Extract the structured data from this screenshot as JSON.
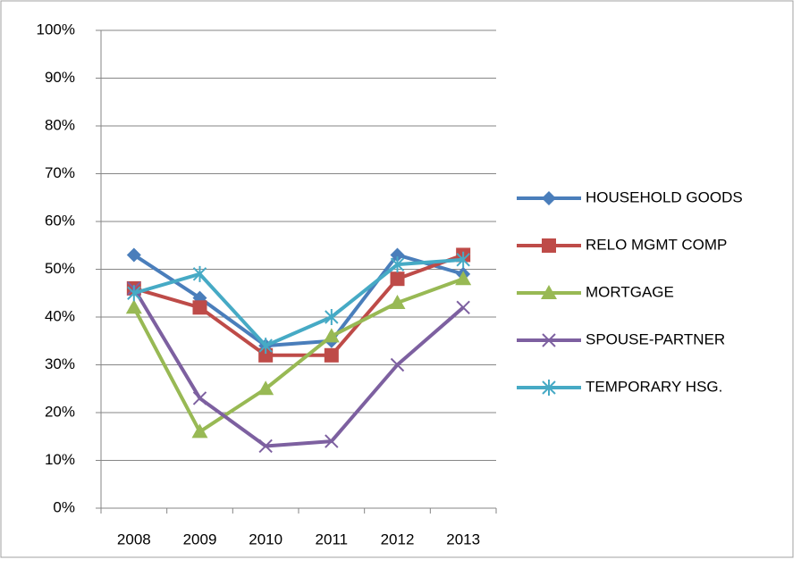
{
  "chart_data": {
    "type": "line",
    "categories": [
      "2008",
      "2009",
      "2010",
      "2011",
      "2012",
      "2013"
    ],
    "series": [
      {
        "name": "HOUSEHOLD GOODS",
        "color": "#4a7ebb",
        "marker": "diamond",
        "values": [
          53,
          44,
          34,
          35,
          53,
          49
        ]
      },
      {
        "name": "RELO MGMT COMP",
        "color": "#be4b48",
        "marker": "square",
        "values": [
          46,
          42,
          32,
          32,
          48,
          53
        ]
      },
      {
        "name": "MORTGAGE",
        "color": "#98b954",
        "marker": "triangle",
        "values": [
          42,
          16,
          25,
          36,
          43,
          48
        ]
      },
      {
        "name": "SPOUSE-PARTNER",
        "color": "#7d60a0",
        "marker": "x",
        "values": [
          46,
          23,
          13,
          14,
          30,
          42
        ]
      },
      {
        "name": "TEMPORARY HSG.",
        "color": "#46aac5",
        "marker": "star",
        "values": [
          45,
          49,
          34,
          40,
          51,
          52
        ]
      }
    ],
    "ylim": [
      0,
      100
    ],
    "yticks": [
      {
        "value": 0,
        "label": "0%"
      },
      {
        "value": 10,
        "label": "10%"
      },
      {
        "value": 20,
        "label": "20%"
      },
      {
        "value": 30,
        "label": "30%"
      },
      {
        "value": 40,
        "label": "40%"
      },
      {
        "value": 50,
        "label": "50%"
      },
      {
        "value": 60,
        "label": "60%"
      },
      {
        "value": 70,
        "label": "70%"
      },
      {
        "value": 80,
        "label": "80%"
      },
      {
        "value": 90,
        "label": "90%"
      },
      {
        "value": 100,
        "label": "100%"
      }
    ],
    "grid": true,
    "legend": "right"
  }
}
